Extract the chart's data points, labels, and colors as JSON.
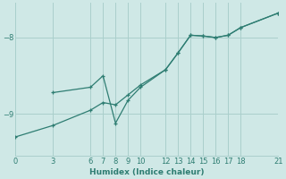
{
  "xlabel": "Humidex (Indice chaleur)",
  "background_color": "#cfe8e6",
  "line_color": "#2e7d72",
  "grid_color": "#aacfcc",
  "xlim": [
    0,
    21
  ],
  "ylim": [
    -9.55,
    -7.55
  ],
  "yticks": [
    -9,
    -8
  ],
  "xticks": [
    0,
    3,
    6,
    7,
    8,
    9,
    10,
    12,
    13,
    14,
    15,
    16,
    17,
    18,
    21
  ],
  "line1_x": [
    0,
    3,
    6,
    7,
    8,
    9,
    10,
    12,
    13,
    14,
    15,
    16,
    17,
    18,
    21
  ],
  "line1_y": [
    -9.3,
    -9.15,
    -8.95,
    -8.85,
    -8.88,
    -8.75,
    -8.62,
    -8.42,
    -8.2,
    -7.97,
    -7.98,
    -8.0,
    -7.97,
    -7.87,
    -7.68
  ],
  "line2_x": [
    3,
    6,
    7,
    8,
    9,
    10,
    12,
    13,
    14,
    15,
    16,
    17,
    18,
    21
  ],
  "line2_y": [
    -8.72,
    -8.65,
    -8.5,
    -9.12,
    -8.82,
    -8.65,
    -8.42,
    -8.2,
    -7.97,
    -7.98,
    -8.0,
    -7.97,
    -7.87,
    -7.68
  ]
}
